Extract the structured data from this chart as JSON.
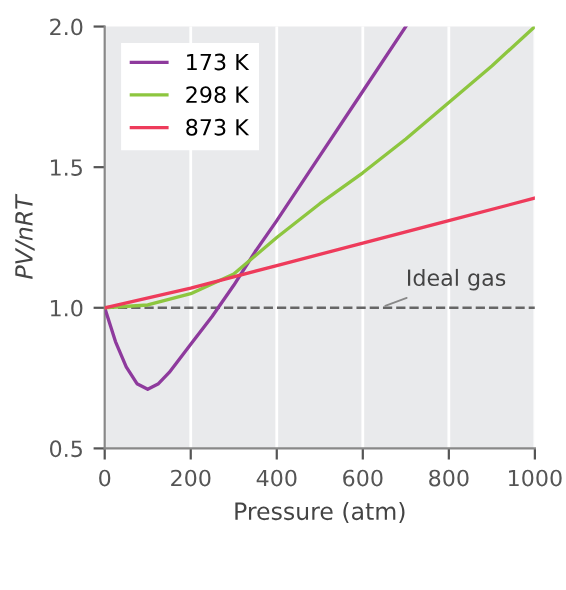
{
  "chart_data": {
    "type": "line",
    "xlabel": "Pressure (atm)",
    "ylabel": "PV/nRT",
    "xlim": [
      0,
      1000
    ],
    "ylim": [
      0.5,
      2.0
    ],
    "xticks": [
      0,
      200,
      400,
      600,
      800,
      1000
    ],
    "yticks": [
      {
        "value": 0.5,
        "label": "0.5"
      },
      {
        "value": 1.0,
        "label": "1.0"
      },
      {
        "value": 1.5,
        "label": "1.5"
      },
      {
        "value": 2.0,
        "label": "2.0"
      }
    ],
    "grid": "x",
    "legend": "top left",
    "marker": "none",
    "line_style": "solid",
    "series": [
      {
        "name": "173 K",
        "color": "#8e3a9d",
        "x": [
          0,
          25,
          50,
          75,
          100,
          125,
          150,
          200,
          250,
          300,
          350,
          400,
          500,
          600,
          700
        ],
        "values": [
          1.0,
          0.88,
          0.79,
          0.73,
          0.71,
          0.73,
          0.77,
          0.87,
          0.97,
          1.08,
          1.2,
          1.31,
          1.54,
          1.77,
          2.0
        ]
      },
      {
        "name": "298 K",
        "color": "#8dc63f",
        "x": [
          0,
          100,
          200,
          300,
          400,
          500,
          600,
          700,
          800,
          900,
          1000
        ],
        "values": [
          1.0,
          1.01,
          1.05,
          1.12,
          1.25,
          1.37,
          1.48,
          1.6,
          1.73,
          1.86,
          2.0
        ]
      },
      {
        "name": "873 K",
        "color": "#ee3b5b",
        "x": [
          0,
          200,
          400,
          600,
          800,
          1000
        ],
        "values": [
          1.0,
          1.07,
          1.15,
          1.23,
          1.31,
          1.39
        ]
      }
    ],
    "ref_lines": [
      {
        "axis": "y",
        "value": 1.0,
        "label": "Ideal gas",
        "color": "#666666",
        "line_style": "dashed"
      }
    ]
  }
}
